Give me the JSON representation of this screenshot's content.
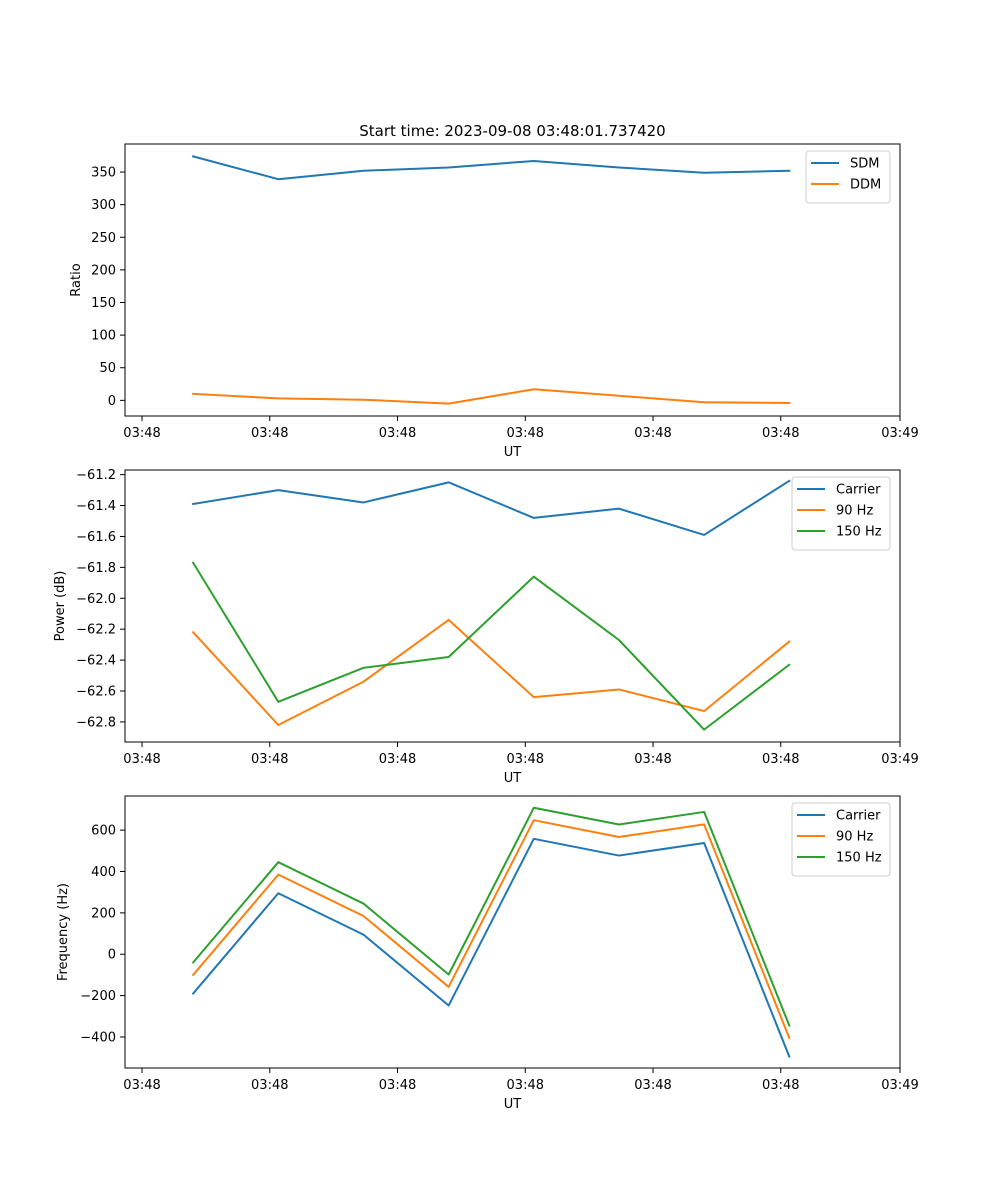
{
  "figure": {
    "title": "Start time: 2023-09-08 03:48:01.737420"
  },
  "chart_data": [
    {
      "type": "line",
      "title": "Start time: 2023-09-08 03:48:01.737420",
      "xlabel": "UT",
      "ylabel": "Ratio",
      "x": [
        1,
        2,
        3,
        4,
        5,
        6,
        7,
        8
      ],
      "xlim": [
        0.2,
        9.3
      ],
      "x_ticks": [
        0.4,
        1.9,
        3.4,
        4.9,
        6.4,
        7.9,
        9.3
      ],
      "x_tick_labels": [
        "03:48",
        "03:48",
        "03:48",
        "03:48",
        "03:48",
        "03:48",
        "03:49"
      ],
      "ylim": [
        -24,
        393
      ],
      "y_ticks": [
        0,
        50,
        100,
        150,
        200,
        250,
        300,
        350
      ],
      "y_tick_labels": [
        "0",
        "50",
        "100",
        "150",
        "200",
        "250",
        "300",
        "350"
      ],
      "legend": "top-right",
      "series": [
        {
          "name": "SDM",
          "color": "#1f77b4",
          "values": [
            374,
            339,
            352,
            357,
            367,
            357,
            349,
            352
          ]
        },
        {
          "name": "DDM",
          "color": "#ff7f0e",
          "values": [
            10,
            3,
            1,
            -5,
            17,
            7,
            -3,
            -4
          ]
        }
      ]
    },
    {
      "type": "line",
      "title": "",
      "xlabel": "UT",
      "ylabel": "Power (dB)",
      "x": [
        1,
        2,
        3,
        4,
        5,
        6,
        7,
        8
      ],
      "xlim": [
        0.2,
        9.3
      ],
      "x_ticks": [
        0.4,
        1.9,
        3.4,
        4.9,
        6.4,
        7.9,
        9.3
      ],
      "x_tick_labels": [
        "03:48",
        "03:48",
        "03:48",
        "03:48",
        "03:48",
        "03:48",
        "03:49"
      ],
      "ylim": [
        -62.93,
        -61.17
      ],
      "y_ticks": [
        -62.8,
        -62.6,
        -62.4,
        -62.2,
        -62.0,
        -61.8,
        -61.6,
        -61.4,
        -61.2
      ],
      "y_tick_labels": [
        "−62.8",
        "−62.6",
        "−62.4",
        "−62.2",
        "−62.0",
        "−61.8",
        "−61.6",
        "−61.4",
        "−61.2"
      ],
      "legend": "top-right",
      "series": [
        {
          "name": "Carrier",
          "color": "#1f77b4",
          "values": [
            -61.39,
            -61.3,
            -61.38,
            -61.25,
            -61.48,
            -61.42,
            -61.59,
            -61.24
          ]
        },
        {
          "name": "90 Hz",
          "color": "#ff7f0e",
          "values": [
            -62.22,
            -62.82,
            -62.54,
            -62.14,
            -62.64,
            -62.59,
            -62.73,
            -62.28
          ]
        },
        {
          "name": "150 Hz",
          "color": "#2ca02c",
          "values": [
            -61.77,
            -62.67,
            -62.45,
            -62.38,
            -61.86,
            -62.27,
            -62.85,
            -62.43
          ]
        }
      ]
    },
    {
      "type": "line",
      "title": "",
      "xlabel": "UT",
      "ylabel": "Frequency (Hz)",
      "x": [
        1,
        2,
        3,
        4,
        5,
        6,
        7,
        8
      ],
      "xlim": [
        0.2,
        9.3
      ],
      "x_ticks": [
        0.4,
        1.9,
        3.4,
        4.9,
        6.4,
        7.9,
        9.3
      ],
      "x_tick_labels": [
        "03:48",
        "03:48",
        "03:48",
        "03:48",
        "03:48",
        "03:48",
        "03:49"
      ],
      "ylim": [
        -550,
        765
      ],
      "y_ticks": [
        -400,
        -200,
        0,
        200,
        400,
        600
      ],
      "y_tick_labels": [
        "−400",
        "−200",
        "0",
        "200",
        "400",
        "600"
      ],
      "legend": "top-right",
      "series": [
        {
          "name": "Carrier",
          "color": "#1f77b4",
          "values": [
            -190,
            295,
            95,
            -248,
            558,
            477,
            538,
            -495
          ]
        },
        {
          "name": "90 Hz",
          "color": "#ff7f0e",
          "values": [
            -100,
            385,
            185,
            -158,
            648,
            567,
            628,
            -405
          ]
        },
        {
          "name": "150 Hz",
          "color": "#2ca02c",
          "values": [
            -40,
            445,
            245,
            -98,
            708,
            627,
            688,
            -345
          ]
        }
      ]
    }
  ]
}
